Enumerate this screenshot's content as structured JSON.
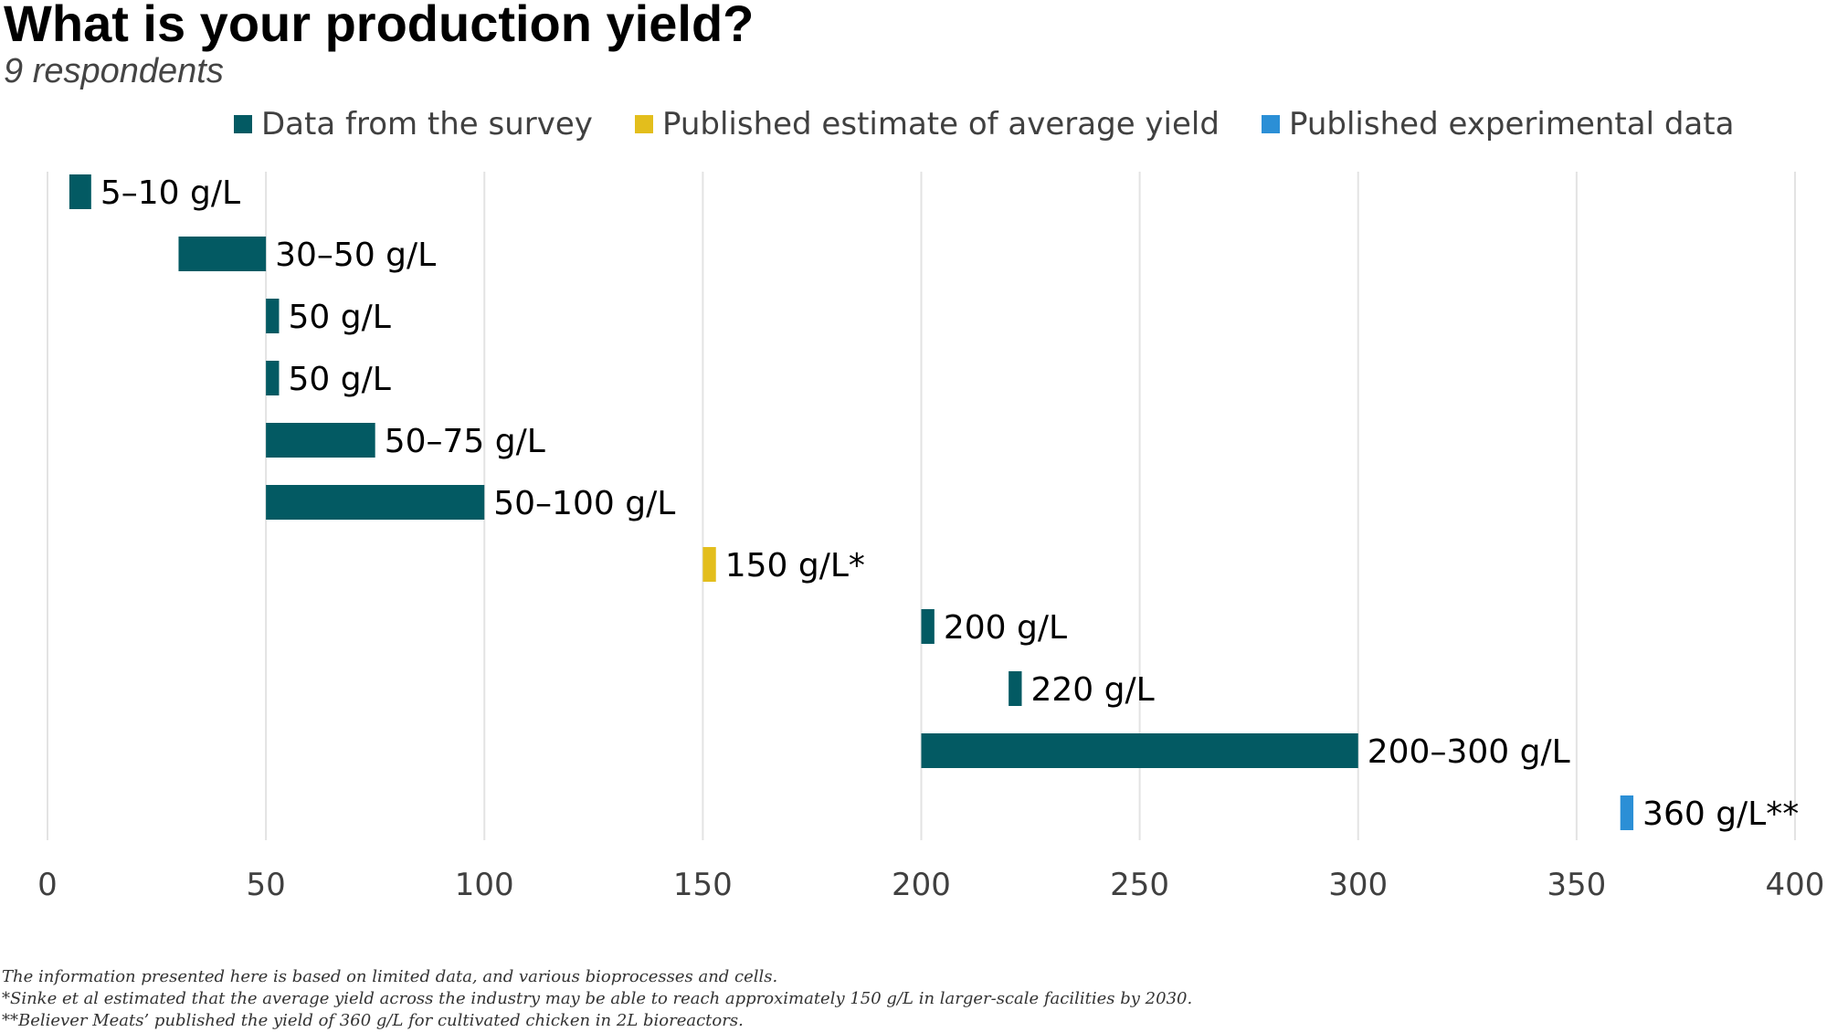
{
  "header": {
    "title": "What is your production yield?",
    "subtitle": "9 respondents"
  },
  "legend": [
    {
      "label": "Data from the survey",
      "color": "#035a63"
    },
    {
      "label": "Published estimate of average yield",
      "color": "#e3be1c"
    },
    {
      "label": "Published experimental data",
      "color": "#2b8fd6"
    }
  ],
  "chart_data": {
    "type": "bar",
    "orientation": "horizontal-range",
    "xlim": [
      0,
      400
    ],
    "xticks": [
      "0",
      "50",
      "100",
      "150",
      "200",
      "250",
      "300",
      "350",
      "400"
    ],
    "grid": "vertical",
    "legend_position": "top-center",
    "bars": [
      {
        "start": 5,
        "end": 10,
        "label": "5–10 g/L",
        "series": "Data from the survey"
      },
      {
        "start": 30,
        "end": 50,
        "label": "30–50 g/L",
        "series": "Data from the survey"
      },
      {
        "start": 50,
        "end": 53,
        "label": "50 g/L",
        "series": "Data from the survey"
      },
      {
        "start": 50,
        "end": 53,
        "label": "50 g/L",
        "series": "Data from the survey"
      },
      {
        "start": 50,
        "end": 75,
        "label": "50–75 g/L",
        "series": "Data from the survey"
      },
      {
        "start": 50,
        "end": 100,
        "label": "50–100 g/L",
        "series": "Data from the survey"
      },
      {
        "start": 150,
        "end": 153,
        "label": "150 g/L*",
        "series": "Published estimate of average yield"
      },
      {
        "start": 200,
        "end": 203,
        "label": "200 g/L",
        "series": "Data from the survey"
      },
      {
        "start": 220,
        "end": 223,
        "label": "220 g/L",
        "series": "Data from the survey"
      },
      {
        "start": 200,
        "end": 300,
        "label": "200–300 g/L",
        "series": "Data from the survey"
      },
      {
        "start": 360,
        "end": 363,
        "label": "360 g/L**",
        "series": "Published experimental data"
      }
    ]
  },
  "footnotes": [
    "The information presented here is based on limited data, and various bioprocesses and cells.",
    "*Sinke et al estimated that the average yield across the industry may be able to reach approximately 150 g/L in larger-scale facilities by 2030.",
    "**Believer Meats’ published the yield of 360 g/L for cultivated chicken in 2L bioreactors."
  ]
}
